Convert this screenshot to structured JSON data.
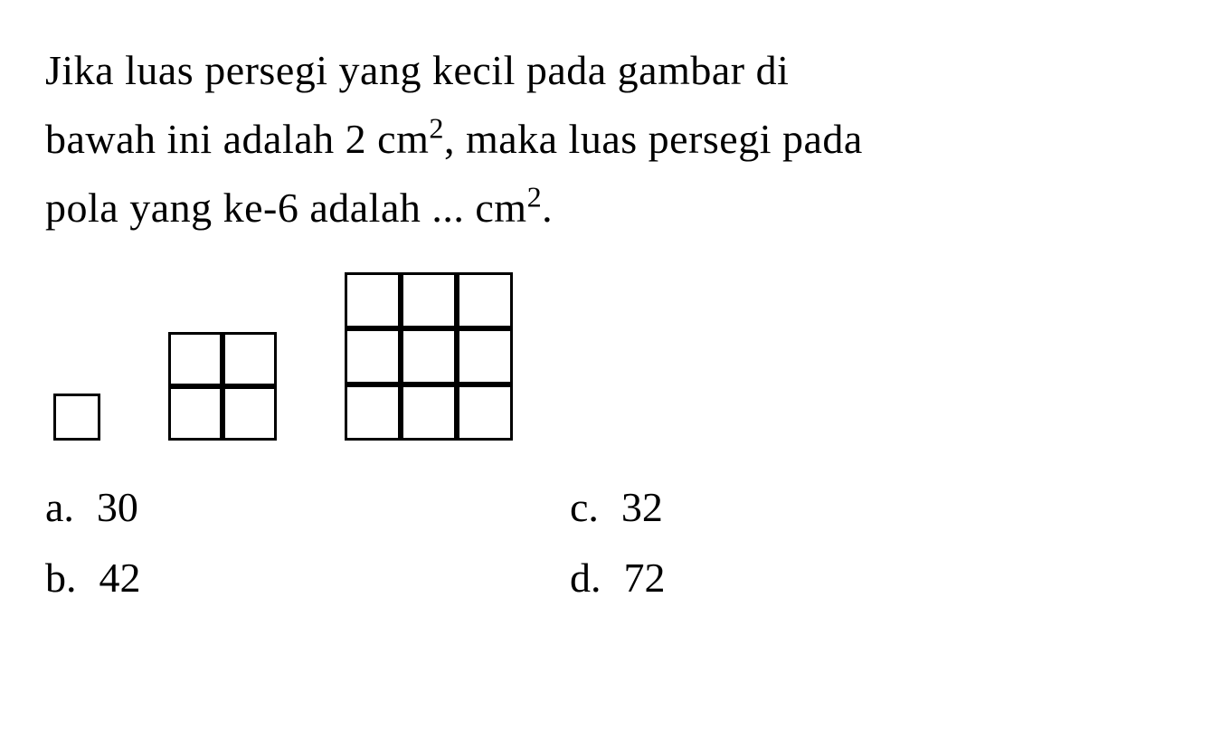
{
  "question": {
    "line1": "Jika luas persegi yang kecil pada gambar di",
    "line2_part1": "bawah ini adalah 2 cm",
    "line2_sup": "2",
    "line2_part2": ", maka luas persegi pada",
    "line3_part1": "pola yang ke-6 adalah ... cm",
    "line3_sup": "2",
    "line3_part2": "."
  },
  "patterns": [
    {
      "name": "pattern-1",
      "rows": 1,
      "cols": 1,
      "cell_size": 52
    },
    {
      "name": "pattern-2",
      "rows": 2,
      "cols": 2,
      "cell_size": 60
    },
    {
      "name": "pattern-3",
      "rows": 3,
      "cols": 3,
      "cell_size": 62
    }
  ],
  "options": {
    "a": {
      "letter": "a.",
      "value": "30"
    },
    "c": {
      "letter": "c.",
      "value": "32"
    },
    "b": {
      "letter": "b.",
      "value": "42"
    },
    "d": {
      "letter": "d.",
      "value": "72"
    }
  },
  "styling": {
    "text_color": "#000000",
    "background_color": "#ffffff",
    "border_color": "#000000",
    "font_size": 46,
    "cell_border_width": 3
  }
}
